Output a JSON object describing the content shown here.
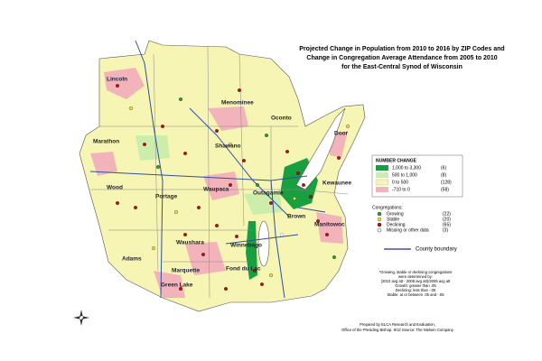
{
  "title": [
    "Projected Change in Population from 2010 to 2016 by ZIP Codes and",
    "Change in Congregation Average Attendance from 2005 to 2010",
    "for the East-Central Synod of Wisconsin"
  ],
  "counties": [
    "Lincoln",
    "Menominee",
    "Oconto",
    "Marathon",
    "Shawano",
    "Door",
    "Wood",
    "Portage",
    "Waupaca",
    "Outagamie",
    "Kewaunee",
    "Brown",
    "Manitowoc",
    "Adams",
    "Waushara",
    "Winnebago",
    "Marquette",
    "Fond du Lac",
    "Green Lake"
  ],
  "legend": {
    "title": "NUMBER CHANGE",
    "rows": [
      {
        "range": "1,000 to 3,300",
        "count": "(6)"
      },
      {
        "range": "500 to 1,000",
        "count": "(8)"
      },
      {
        "range": "0 to 500",
        "count": "(128)"
      },
      {
        "range": "-710 to 0",
        "count": "(58)"
      }
    ]
  },
  "congregations": {
    "title": "Congregations:",
    "rows": [
      {
        "label": "Growing",
        "count": "(22)"
      },
      {
        "label": "Stable",
        "count": "(20)"
      },
      {
        "label": "Declining",
        "count": "(65)"
      },
      {
        "label": "Missing or other data",
        "count": "(3)"
      }
    ]
  },
  "boundary": "County boundary",
  "note": [
    "*Growing, stable or declining congregations",
    "were determined by:",
    "(2010 avg att - 2005 avg att)/2005 avg att",
    "Growth: greater than .05",
    "Declining: less than -.05",
    "Stable: at or between .05 and -.05"
  ],
  "footer": [
    "Prepared by ELCA Research and Evaluation,",
    "Office of the Presiding Bishop. 9/12 Source: The Nielsen Company"
  ]
}
